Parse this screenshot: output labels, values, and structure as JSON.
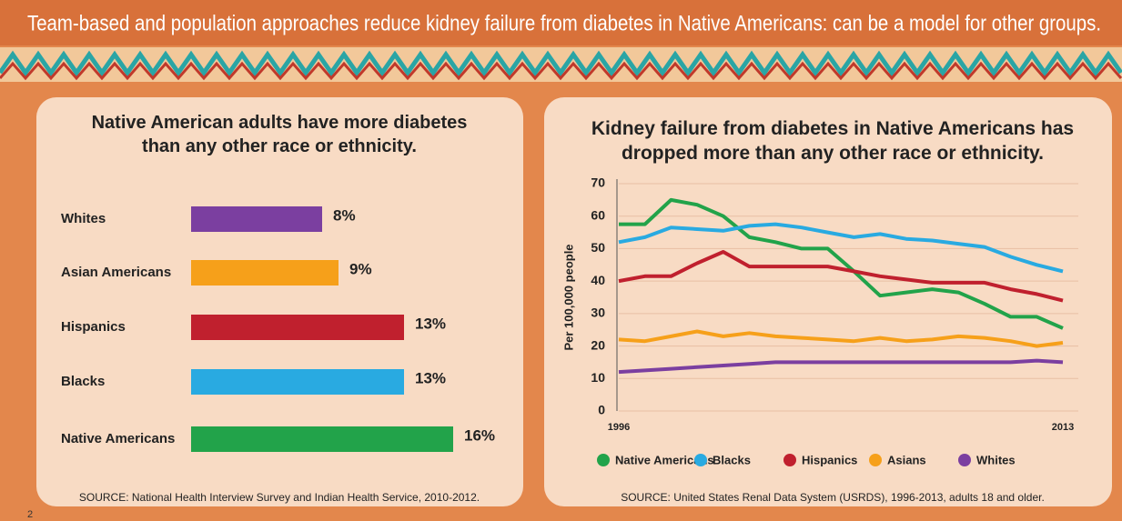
{
  "header": {
    "title": "Team-based and population approaches reduce kidney failure from diabetes in Native Americans: can be a model for other groups."
  },
  "page_number": "2",
  "chart_data": [
    {
      "type": "hbar",
      "title": "Native American adults have more diabetes than any other race or ethnicity.",
      "categories": [
        "Whites",
        "Asian Americans",
        "Hispanics",
        "Blacks",
        "Native Americans"
      ],
      "values": [
        8,
        9,
        13,
        13,
        16
      ],
      "value_labels": [
        "8%",
        "9%",
        "13%",
        "13%",
        "16%"
      ],
      "colors": [
        "#7b3fa0",
        "#f6a01a",
        "#c0202e",
        "#29aae1",
        "#22a34a"
      ],
      "source": "SOURCE: National Health Interview Survey and Indian Health Service, 2010-2012."
    },
    {
      "type": "line",
      "title": "Kidney failure from diabetes in Native Americans has dropped more than any other race or ethnicity.",
      "ylabel": "Per 100,000 people",
      "x": [
        1996,
        1997,
        1998,
        1999,
        2000,
        2001,
        2002,
        2003,
        2004,
        2005,
        2006,
        2007,
        2008,
        2009,
        2010,
        2011,
        2012,
        2013
      ],
      "xlim": [
        1996,
        2013
      ],
      "xticks": [
        1996,
        2013
      ],
      "ylim": [
        0,
        70
      ],
      "yticks": [
        0,
        10,
        20,
        30,
        40,
        50,
        60,
        70
      ],
      "grid": true,
      "series": [
        {
          "name": "Native Americans",
          "color": "#22a34a",
          "values": [
            57.5,
            57.5,
            65,
            63.5,
            60,
            53.5,
            52,
            50,
            50,
            43,
            35.5,
            36.5,
            37.5,
            36.5,
            33,
            29,
            29,
            25.5
          ]
        },
        {
          "name": "Blacks",
          "color": "#29aae1",
          "values": [
            52,
            53.5,
            56.5,
            56,
            55.5,
            57,
            57.5,
            56.5,
            55,
            53.5,
            54.5,
            53,
            52.5,
            51.5,
            50.5,
            47.5,
            45,
            43
          ]
        },
        {
          "name": "Hispanics",
          "color": "#c0202e",
          "values": [
            40,
            41.5,
            41.5,
            45.5,
            49,
            44.5,
            44.5,
            44.5,
            44.5,
            43,
            41.5,
            40.5,
            39.5,
            39.5,
            39.5,
            37.5,
            36,
            34
          ]
        },
        {
          "name": "Asians",
          "color": "#f6a01a",
          "values": [
            22,
            21.5,
            23,
            24.5,
            23,
            24,
            23,
            22.5,
            22,
            21.5,
            22.5,
            21.5,
            22,
            23,
            22.5,
            21.5,
            20,
            21
          ]
        },
        {
          "name": "Whites",
          "color": "#7b3fa0",
          "values": [
            12,
            12.5,
            13,
            13.5,
            14,
            14.5,
            15,
            15,
            15,
            15,
            15,
            15,
            15,
            15,
            15,
            15,
            15.5,
            15
          ]
        }
      ],
      "legend": "bottom",
      "source": "SOURCE: United States Renal Data System (USRDS), 1996-2013, adults 18 and older."
    }
  ]
}
